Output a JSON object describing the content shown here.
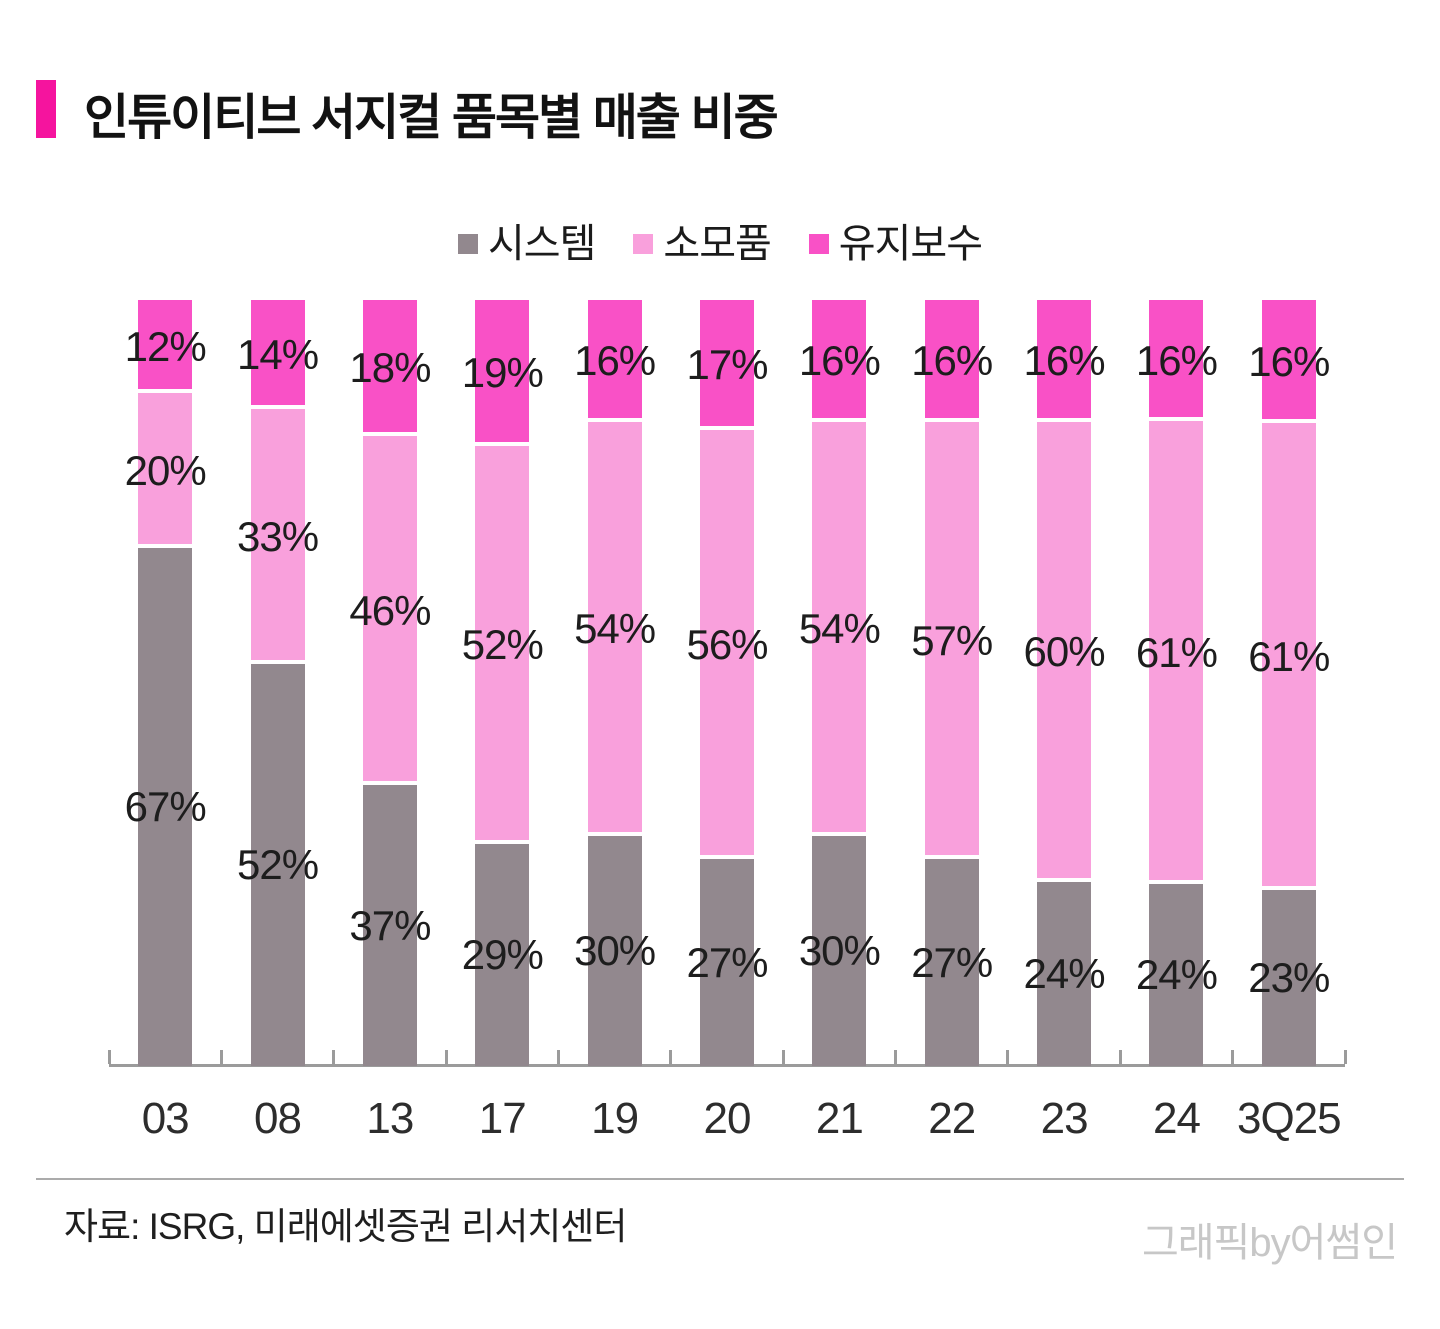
{
  "title": "인튜이티브 서지컬 품목별 매출 비중",
  "colors": {
    "accent": "#F5149E",
    "system_gray": "#92888E",
    "consumables_pink": "#F9A0DC",
    "maintenance_magenta": "#F951C6",
    "axis": "#9b9b9b",
    "watermark": "#c7c7c7"
  },
  "chart_data": {
    "type": "bar",
    "stacked": true,
    "percent_stacked": true,
    "legend_position": "top",
    "grid": false,
    "ylim": [
      0,
      100
    ],
    "value_suffix": "%",
    "categories": [
      "03",
      "08",
      "13",
      "17",
      "19",
      "20",
      "21",
      "22",
      "23",
      "24",
      "3Q25"
    ],
    "series": [
      {
        "name": "시스템",
        "color": "#92888E",
        "values": [
          67,
          52,
          37,
          29,
          30,
          27,
          30,
          27,
          24,
          24,
          23
        ]
      },
      {
        "name": "소모품",
        "color": "#F9A0DC",
        "values": [
          20,
          33,
          46,
          52,
          54,
          56,
          54,
          57,
          60,
          61,
          61
        ]
      },
      {
        "name": "유지보수",
        "color": "#F951C6",
        "values": [
          12,
          14,
          18,
          19,
          16,
          17,
          16,
          16,
          16,
          16,
          16
        ]
      }
    ]
  },
  "footer": {
    "source": "자료: ISRG, 미래에셋증권 리서치센터",
    "watermark": "그래픽by어썸인"
  }
}
